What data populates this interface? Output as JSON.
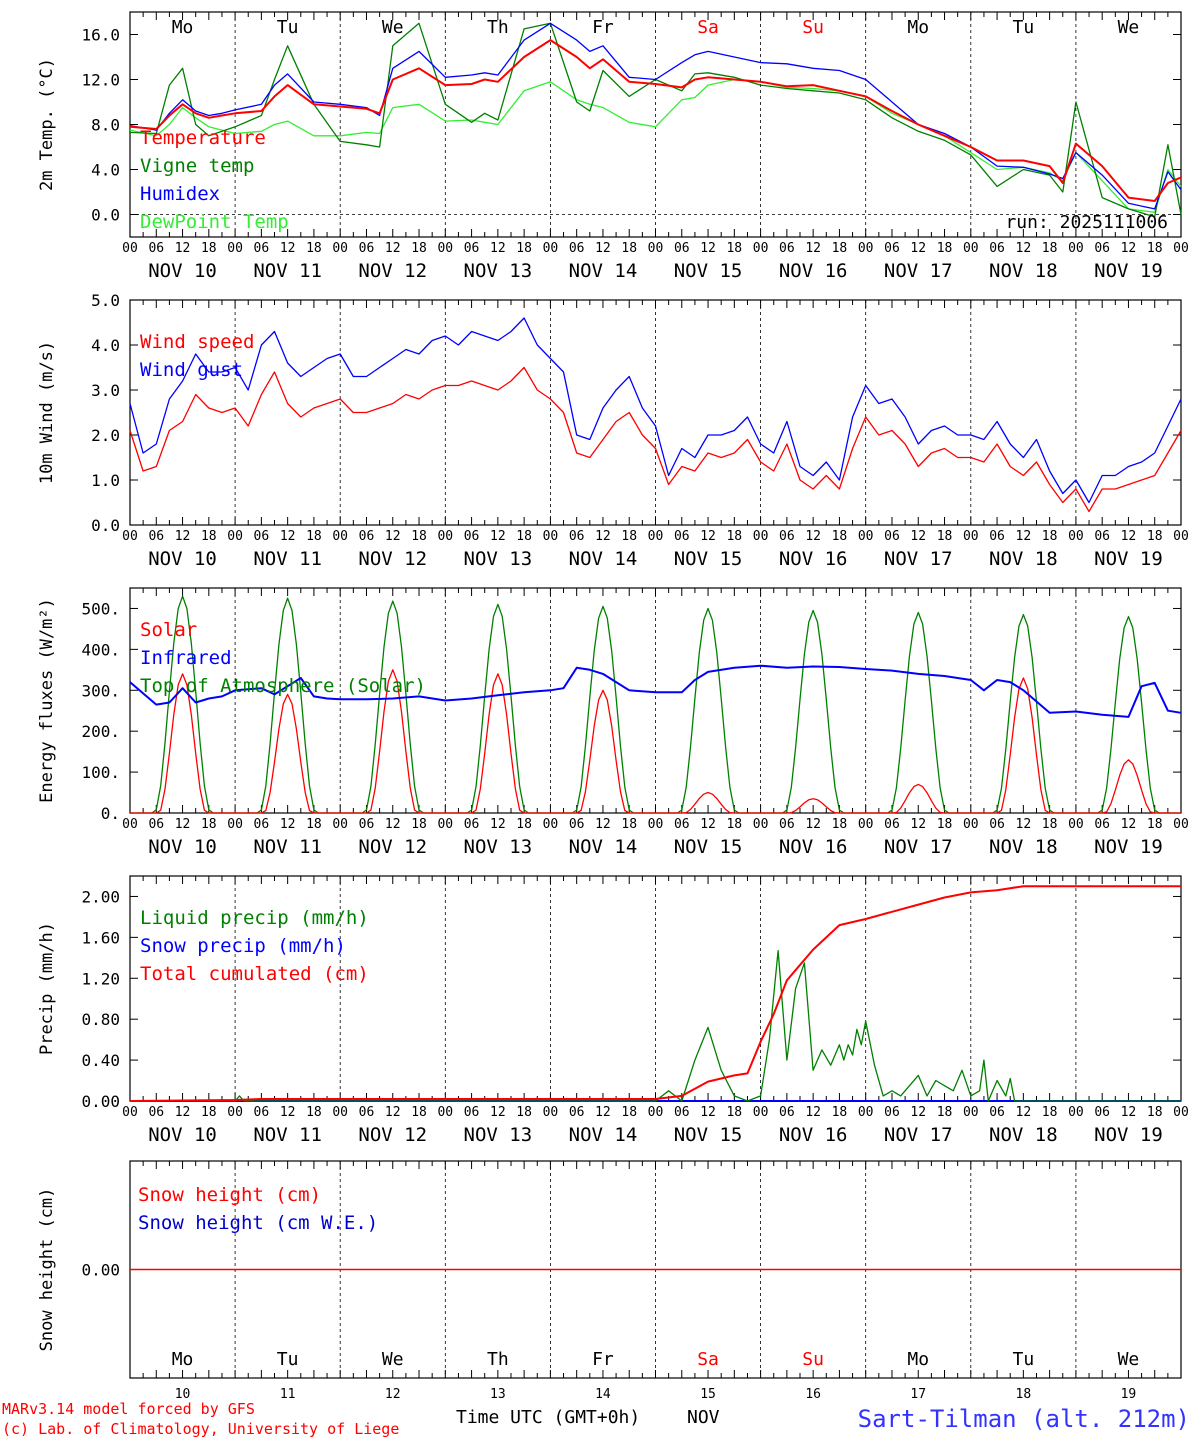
{
  "meta": {
    "run_label": "run: 2025111006",
    "model_credit": "MARv3.14 model forced by GFS",
    "lab_credit": "(c) Lab. of Climatology, University of Liege",
    "xaxis_title": "Time UTC (GMT+0h)",
    "month": "NOV",
    "station": "Sart-Tilman (alt. 212m)"
  },
  "colors": {
    "red": "#ff0000",
    "green": "#008000",
    "blue": "#0000ff",
    "lightgreen": "#33ee33",
    "navy": "#0000cc"
  },
  "days": [
    {
      "abbr": "Mo",
      "num": "10",
      "date": "NOV 10",
      "weekend": false
    },
    {
      "abbr": "Tu",
      "num": "11",
      "date": "NOV 11",
      "weekend": false
    },
    {
      "abbr": "We",
      "num": "12",
      "date": "NOV 12",
      "weekend": false
    },
    {
      "abbr": "Th",
      "num": "13",
      "date": "NOV 13",
      "weekend": false
    },
    {
      "abbr": "Fr",
      "num": "14",
      "date": "NOV 14",
      "weekend": false
    },
    {
      "abbr": "Sa",
      "num": "15",
      "date": "NOV 15",
      "weekend": true
    },
    {
      "abbr": "Su",
      "num": "16",
      "date": "NOV 16",
      "weekend": true
    },
    {
      "abbr": "Mo",
      "num": "17",
      "date": "NOV 17",
      "weekend": false
    },
    {
      "abbr": "Tu",
      "num": "18",
      "date": "NOV 18",
      "weekend": false
    },
    {
      "abbr": "We",
      "num": "19",
      "date": "NOV 19",
      "weekend": false
    }
  ],
  "hour_ticks": [
    "00",
    "06",
    "12",
    "18"
  ],
  "hour_end_tick": "00",
  "chart_data": [
    {
      "id": "temp",
      "type": "line",
      "ylabel": "2m Temp. (°C)",
      "ylim": [
        -2,
        18
      ],
      "yticks": [
        0,
        4,
        8,
        12,
        16
      ],
      "ytick_labels": [
        "0.0",
        "4.0",
        "8.0",
        "12.0",
        "16.0"
      ],
      "zero_line": true,
      "legend": [
        "Temperature",
        "Vigne temp",
        "Humidex",
        "DewPoint Temp"
      ],
      "x_hours": [
        0,
        6,
        9,
        12,
        15,
        18,
        21,
        24,
        30,
        33,
        36,
        42,
        48,
        54,
        57,
        60,
        66,
        72,
        78,
        81,
        84,
        90,
        96,
        102,
        105,
        108,
        114,
        120,
        126,
        129,
        132,
        138,
        144,
        150,
        156,
        162,
        168,
        174,
        180,
        186,
        192,
        198,
        204,
        210,
        213,
        216,
        222,
        228,
        234,
        237,
        240
      ],
      "series": [
        {
          "name": "Temperature",
          "color": "red",
          "thick": true,
          "values": [
            7.8,
            7.6,
            8.8,
            9.8,
            9.0,
            8.6,
            8.8,
            9.0,
            9.2,
            10.5,
            11.5,
            9.8,
            9.6,
            9.4,
            9.0,
            12.0,
            13.0,
            11.5,
            11.6,
            12.0,
            11.8,
            14.0,
            15.5,
            14.0,
            13.0,
            13.8,
            11.8,
            11.6,
            11.3,
            12.0,
            12.2,
            12.0,
            11.8,
            11.4,
            11.5,
            11.0,
            10.5,
            9.2,
            8.0,
            7.0,
            6.0,
            4.8,
            4.8,
            4.3,
            2.8,
            6.3,
            4.3,
            1.5,
            1.2,
            2.8,
            3.3
          ]
        },
        {
          "name": "Vigne temp",
          "color": "green",
          "thick": false,
          "values": [
            7.3,
            7.2,
            11.5,
            13.0,
            8.0,
            7.0,
            7.4,
            7.8,
            8.8,
            12.0,
            15.0,
            9.8,
            6.5,
            6.2,
            6.0,
            15.0,
            17.0,
            9.8,
            8.2,
            9.0,
            8.4,
            16.5,
            17.0,
            10.0,
            9.2,
            12.8,
            10.5,
            12.0,
            11.0,
            12.5,
            12.6,
            12.2,
            11.5,
            11.2,
            11.0,
            10.8,
            10.2,
            8.6,
            7.4,
            6.6,
            5.3,
            2.5,
            4.0,
            3.5,
            2.0,
            10.0,
            1.5,
            0.5,
            -0.2,
            6.2,
            0.0
          ]
        },
        {
          "name": "Humidex",
          "color": "blue",
          "thick": false,
          "values": [
            7.9,
            7.5,
            9.0,
            10.2,
            9.2,
            8.8,
            9.0,
            9.3,
            9.8,
            11.5,
            12.5,
            10.0,
            9.8,
            9.5,
            8.8,
            13.0,
            14.5,
            12.2,
            12.4,
            12.6,
            12.4,
            15.5,
            17.0,
            15.5,
            14.5,
            15.0,
            12.2,
            12.0,
            13.5,
            14.2,
            14.5,
            14.0,
            13.5,
            13.4,
            13.0,
            12.8,
            12.0,
            10.0,
            8.0,
            7.2,
            6.0,
            4.3,
            4.2,
            3.6,
            3.2,
            5.5,
            3.5,
            1.0,
            0.5,
            3.8,
            2.2
          ]
        },
        {
          "name": "DewPoint Temp",
          "color": "lightgreen",
          "thick": false,
          "values": [
            7.5,
            7.0,
            8.0,
            9.5,
            8.6,
            7.8,
            7.5,
            7.2,
            7.4,
            8.0,
            8.3,
            7.0,
            7.0,
            7.3,
            7.2,
            9.5,
            9.8,
            8.3,
            8.4,
            8.2,
            8.0,
            11.0,
            11.8,
            10.2,
            9.8,
            9.5,
            8.2,
            7.8,
            10.2,
            10.4,
            11.5,
            12.0,
            11.8,
            11.3,
            11.2,
            11.0,
            10.5,
            9.0,
            8.0,
            7.0,
            5.5,
            4.0,
            4.2,
            3.7,
            3.0,
            5.5,
            3.0,
            0.5,
            0.2,
            4.0,
            2.5
          ]
        }
      ]
    },
    {
      "id": "wind",
      "type": "line",
      "ylabel": "10m Wind (m/s)",
      "ylim": [
        0,
        5
      ],
      "yticks": [
        0,
        1,
        2,
        3,
        4,
        5
      ],
      "ytick_labels": [
        "0.0",
        "1.0",
        "2.0",
        "3.0",
        "4.0",
        "5.0"
      ],
      "legend": [
        "Wind speed",
        "Wind gust"
      ],
      "x_hours": [
        0,
        3,
        6,
        9,
        12,
        15,
        18,
        21,
        24,
        27,
        30,
        33,
        36,
        39,
        42,
        45,
        48,
        51,
        54,
        57,
        60,
        63,
        66,
        69,
        72,
        75,
        78,
        81,
        84,
        87,
        90,
        93,
        96,
        99,
        102,
        105,
        108,
        111,
        114,
        117,
        120,
        123,
        126,
        129,
        132,
        135,
        138,
        141,
        144,
        147,
        150,
        153,
        156,
        159,
        162,
        165,
        168,
        171,
        174,
        177,
        180,
        183,
        186,
        189,
        192,
        195,
        198,
        201,
        204,
        207,
        210,
        213,
        216,
        219,
        222,
        225,
        228,
        231,
        234,
        237,
        240
      ],
      "series": [
        {
          "name": "Wind speed",
          "color": "red",
          "thick": false,
          "values": [
            2.1,
            1.2,
            1.3,
            2.1,
            2.3,
            2.9,
            2.6,
            2.5,
            2.6,
            2.2,
            2.9,
            3.4,
            2.7,
            2.4,
            2.6,
            2.7,
            2.8,
            2.5,
            2.5,
            2.6,
            2.7,
            2.9,
            2.8,
            3.0,
            3.1,
            3.1,
            3.2,
            3.1,
            3.0,
            3.2,
            3.5,
            3.0,
            2.8,
            2.5,
            1.6,
            1.5,
            1.9,
            2.3,
            2.5,
            2.0,
            1.7,
            0.9,
            1.3,
            1.2,
            1.6,
            1.5,
            1.6,
            1.9,
            1.4,
            1.2,
            1.8,
            1.0,
            0.8,
            1.1,
            0.8,
            1.7,
            2.4,
            2.0,
            2.1,
            1.8,
            1.3,
            1.6,
            1.7,
            1.5,
            1.5,
            1.4,
            1.8,
            1.3,
            1.1,
            1.4,
            0.9,
            0.5,
            0.8,
            0.3,
            0.8,
            0.8,
            0.9,
            1.0,
            1.1,
            1.6,
            2.1
          ]
        },
        {
          "name": "Wind gust",
          "color": "blue",
          "thick": false,
          "values": [
            2.7,
            1.6,
            1.8,
            2.8,
            3.2,
            3.8,
            3.4,
            3.4,
            3.5,
            3.0,
            4.0,
            4.3,
            3.6,
            3.3,
            3.5,
            3.7,
            3.8,
            3.3,
            3.3,
            3.5,
            3.7,
            3.9,
            3.8,
            4.1,
            4.2,
            4.0,
            4.3,
            4.2,
            4.1,
            4.3,
            4.6,
            4.0,
            3.7,
            3.4,
            2.0,
            1.9,
            2.6,
            3.0,
            3.3,
            2.6,
            2.2,
            1.1,
            1.7,
            1.5,
            2.0,
            2.0,
            2.1,
            2.4,
            1.8,
            1.6,
            2.3,
            1.3,
            1.1,
            1.4,
            1.0,
            2.4,
            3.1,
            2.7,
            2.8,
            2.4,
            1.8,
            2.1,
            2.2,
            2.0,
            2.0,
            1.9,
            2.3,
            1.8,
            1.5,
            1.9,
            1.2,
            0.7,
            1.0,
            0.5,
            1.1,
            1.1,
            1.3,
            1.4,
            1.6,
            2.2,
            2.8
          ]
        }
      ]
    },
    {
      "id": "flux",
      "type": "line",
      "ylabel": "Energy fluxes (W/m²)",
      "ylim": [
        0,
        550
      ],
      "yticks": [
        0,
        100,
        200,
        300,
        400,
        500
      ],
      "ytick_labels": [
        "0.",
        "100.",
        "200.",
        "300.",
        "400.",
        "500."
      ],
      "legend": [
        "Solar",
        "Infrared",
        "Top of Atmosphere (Solar)"
      ],
      "solar_peaks": [
        340,
        290,
        350,
        340,
        300,
        50,
        35,
        70,
        330,
        130
      ],
      "toa_peaks": [
        530,
        525,
        518,
        510,
        505,
        500,
        495,
        490,
        485,
        480
      ],
      "infrared_x_hours": [
        0,
        6,
        9,
        12,
        15,
        18,
        21,
        24,
        30,
        33,
        36,
        39,
        42,
        45,
        48,
        54,
        60,
        66,
        72,
        78,
        84,
        90,
        96,
        99,
        102,
        105,
        108,
        111,
        114,
        120,
        126,
        129,
        132,
        138,
        144,
        150,
        156,
        162,
        168,
        174,
        180,
        186,
        192,
        195,
        198,
        201,
        204,
        210,
        216,
        222,
        228,
        231,
        234,
        237,
        240
      ],
      "infrared_values": [
        320,
        265,
        270,
        305,
        270,
        280,
        285,
        300,
        305,
        290,
        310,
        330,
        285,
        280,
        278,
        278,
        280,
        285,
        275,
        280,
        288,
        295,
        300,
        305,
        355,
        350,
        340,
        320,
        300,
        295,
        295,
        325,
        345,
        355,
        360,
        355,
        358,
        357,
        352,
        348,
        340,
        335,
        325,
        300,
        325,
        320,
        300,
        245,
        248,
        240,
        235,
        310,
        318,
        250,
        245
      ]
    },
    {
      "id": "precip",
      "type": "line",
      "ylabel": "Precip (mm/h)",
      "ylim": [
        0,
        2.2
      ],
      "yticks": [
        0,
        0.4,
        0.8,
        1.2,
        1.6,
        2.0
      ],
      "ytick_labels": [
        "0.00",
        "0.40",
        "0.80",
        "1.20",
        "1.60",
        "2.00"
      ],
      "legend": [
        "Liquid precip (mm/h)",
        "Snow precip (mm/h)",
        "Total cumulated (cm)"
      ],
      "liquid_x_hours": [
        0,
        24,
        25,
        26,
        120,
        123,
        126,
        129,
        132,
        135,
        138,
        141,
        144,
        146,
        148,
        150,
        152,
        154,
        156,
        158,
        160,
        162,
        163,
        164,
        165,
        166,
        167,
        168,
        170,
        172,
        174,
        176,
        180,
        182,
        184,
        186,
        188,
        190,
        192,
        194,
        195,
        196,
        198,
        200,
        201,
        202,
        240
      ],
      "liquid_values": [
        0,
        0,
        0.05,
        0,
        0,
        0.1,
        0,
        0.4,
        0.72,
        0.3,
        0.05,
        0,
        0.05,
        0.6,
        1.47,
        0.4,
        1.1,
        1.35,
        0.3,
        0.5,
        0.35,
        0.55,
        0.4,
        0.55,
        0.45,
        0.7,
        0.55,
        0.78,
        0.35,
        0.05,
        0.1,
        0.05,
        0.25,
        0.05,
        0.2,
        0.15,
        0.1,
        0.3,
        0.05,
        0.1,
        0.4,
        0,
        0.2,
        0.05,
        0.22,
        0,
        0
      ],
      "cumul_x_hours": [
        0,
        24,
        30,
        48,
        72,
        96,
        120,
        126,
        132,
        138,
        141,
        144,
        147,
        150,
        156,
        162,
        168,
        174,
        180,
        186,
        192,
        198,
        204,
        210,
        240
      ],
      "cumul_values": [
        0,
        0.01,
        0.02,
        0.02,
        0.02,
        0.02,
        0.02,
        0.05,
        0.19,
        0.25,
        0.27,
        0.58,
        0.85,
        1.18,
        1.48,
        1.72,
        1.78,
        1.85,
        1.92,
        1.99,
        2.04,
        2.06,
        2.1,
        2.1,
        2.1
      ]
    },
    {
      "id": "snow",
      "type": "line",
      "ylabel": "Snow height (cm)",
      "ylim": [
        -1,
        1
      ],
      "yticks": [
        0
      ],
      "ytick_labels": [
        "0.00"
      ],
      "legend": [
        "Snow height (cm)",
        "Snow height (cm W.E.)"
      ],
      "values": [
        0,
        0
      ]
    }
  ]
}
